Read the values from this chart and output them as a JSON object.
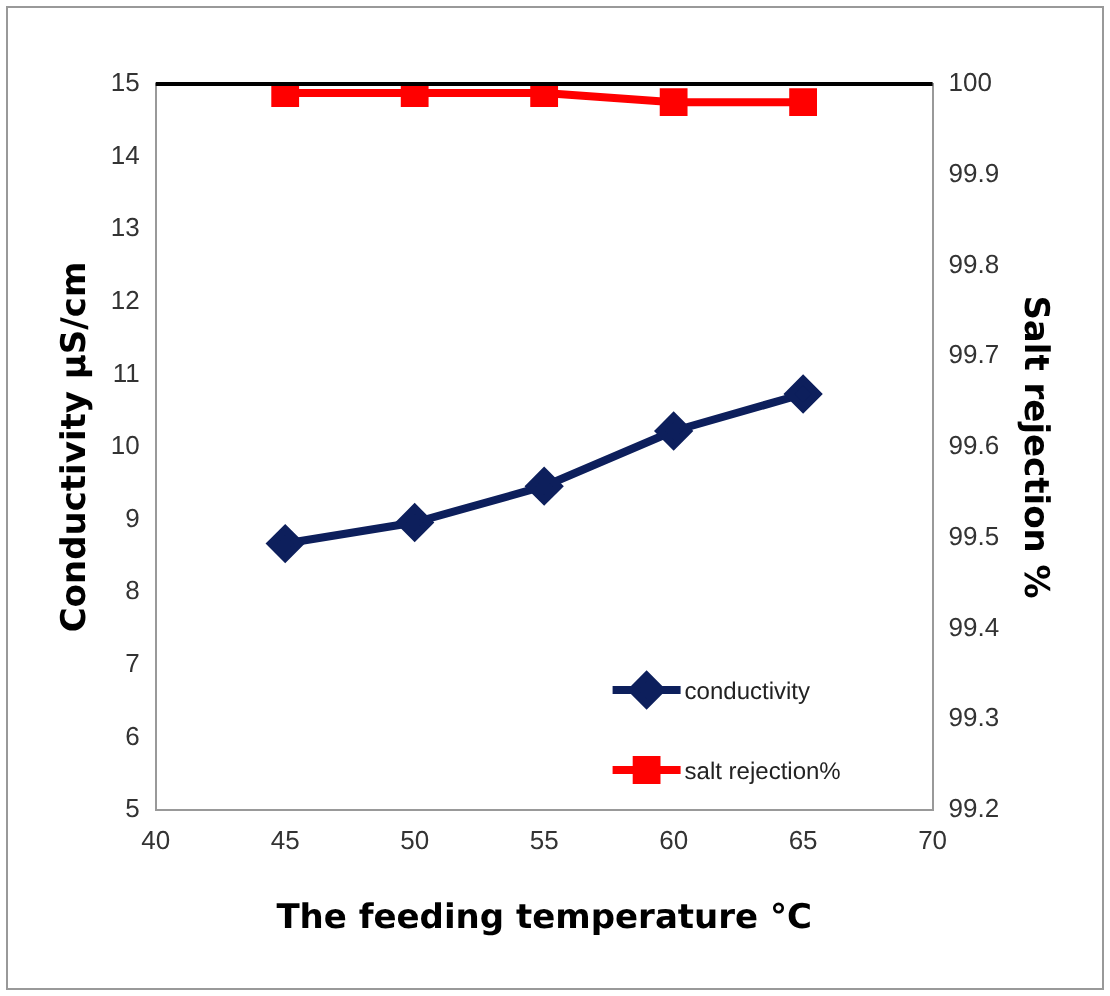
{
  "chart_data": {
    "type": "line",
    "xlabel": "The feeding temperature °C",
    "ylabel": "Conductivity µS/cm",
    "y2label": "Salt rejection %",
    "x": [
      45,
      50,
      55,
      60,
      65
    ],
    "series": [
      {
        "name": "conductivity",
        "color": "#0d1f5c",
        "marker": "diamond",
        "values": [
          8.67,
          8.96,
          9.46,
          10.22,
          10.73
        ]
      },
      {
        "name": "salt rejection%",
        "color": "#ff0000",
        "marker": "square",
        "axis": "y2",
        "values": [
          99.99,
          99.99,
          99.99,
          99.98,
          99.98
        ]
      }
    ],
    "xlim": [
      40,
      70
    ],
    "xticks": [
      40,
      45,
      50,
      55,
      60,
      65,
      70
    ],
    "ylim": [
      5,
      15
    ],
    "yticks": [
      5,
      6,
      7,
      8,
      9,
      10,
      11,
      12,
      13,
      14,
      15
    ],
    "y2lim": [
      99.2,
      100
    ],
    "y2ticks": [
      99.2,
      99.3,
      99.4,
      99.5,
      99.6,
      99.7,
      99.8,
      99.9,
      100
    ],
    "grid": false,
    "legend": "bottom right",
    "line_style": "solid"
  }
}
